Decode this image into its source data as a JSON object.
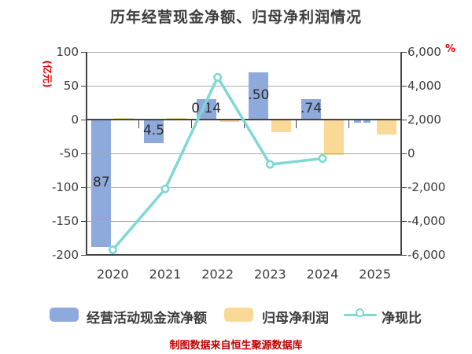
{
  "title": "历年经营现金净额、归母净利润情况",
  "footer": "制图数据来自恒生聚源数据库",
  "left_axis": {
    "unit": "(亿元)",
    "ticks": [
      "100",
      "50",
      "0",
      "-50",
      "-100",
      "-150",
      "-200"
    ],
    "range": [
      -200,
      100
    ]
  },
  "right_axis": {
    "unit": "%",
    "ticks": [
      "6,000",
      "4,000",
      "2,000",
      "0",
      "-2,000",
      "-4,000",
      "-6,000"
    ],
    "range": [
      -6000,
      6000
    ]
  },
  "colors": {
    "bar_blue": "#8EA9DB",
    "bar_orange": "#FAD996",
    "line_teal": "#7FD8D2",
    "axis_text": "#3C3C3C",
    "unit_red": "#E00000",
    "footer_red": "#C00000",
    "grid": "#ABABAB",
    "axis_dark": "#434343",
    "bar_label_text": "#2D2D2D"
  },
  "legend": [
    {
      "label": "经营活动现金流净额",
      "type": "bar",
      "color": "#8EA9DB"
    },
    {
      "label": "归母净利润",
      "type": "bar",
      "color": "#FAD996"
    },
    {
      "label": "净现比",
      "type": "line",
      "color": "#7FD8D2"
    }
  ],
  "chart_data": {
    "type": "bar",
    "subtype": "combo-bar-line-dual-axis",
    "categories": [
      "2020",
      "2021",
      "2022",
      "2023",
      "2024",
      "2025"
    ],
    "title": "历年经营现金净额、归母净利润情况",
    "xlabel": "",
    "ylabel_left": "(亿元)",
    "ylabel_right": "%",
    "ylim_left": [
      -200,
      100
    ],
    "ylim_right": [
      -6000,
      6000
    ],
    "grid": true,
    "legend_position": "bottom",
    "series": [
      {
        "name": "经营活动现金流净额",
        "type": "bar",
        "axis": "left",
        "color": "#8EA9DB",
        "values": [
          -187.9,
          -34.5,
          30.1,
          69.5,
          30.7,
          null
        ],
        "visible_bar_labels": [
          "87",
          "4.5",
          "0.14",
          ".50",
          ".74",
          ""
        ],
        "dashed_placeholder_last": true
      },
      {
        "name": "归母净利润",
        "type": "bar",
        "axis": "left",
        "color": "#FAD996",
        "values": [
          2,
          2,
          -3,
          -19,
          -52,
          -22
        ],
        "visible_bar_labels": [
          "",
          "",
          "",
          "",
          "",
          ""
        ]
      },
      {
        "name": "净现比",
        "type": "line",
        "axis": "right",
        "color": "#7FD8D2",
        "marker": "circle-white-fill",
        "values": [
          -5700,
          -2100,
          4500,
          -650,
          -300,
          null
        ]
      }
    ]
  }
}
